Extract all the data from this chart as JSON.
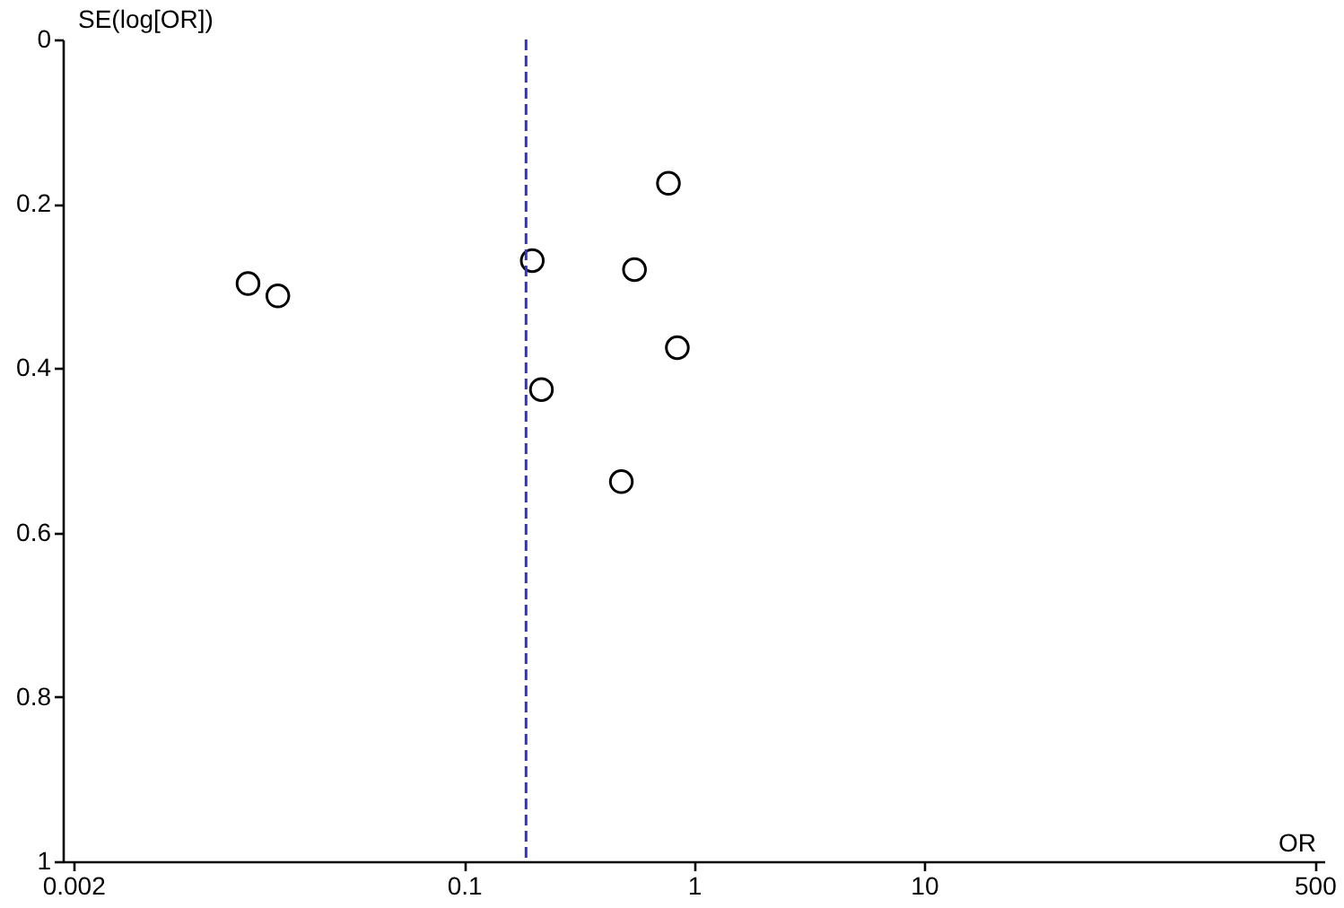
{
  "chart_data": {
    "type": "scatter",
    "xlabel": "OR",
    "ylabel": "SE(log[OR])",
    "x": [
      0.0115,
      0.0155,
      0.198,
      0.774,
      0.551,
      0.846,
      0.217,
      0.483
    ],
    "values": [
      0.297,
      0.312,
      0.269,
      0.175,
      0.28,
      0.375,
      0.426,
      0.538
    ],
    "color": "#000000",
    "marker": "circle",
    "log": "x",
    "xlim": [
      0.0018,
      550
    ],
    "xticks": [
      0.002,
      0.1,
      1,
      10,
      500
    ],
    "ylim": [
      1,
      0
    ],
    "yticks": [
      0,
      0.2,
      0.4,
      0.6,
      0.8,
      1
    ],
    "grid": false,
    "ref_lines": [
      {
        "axis": "x",
        "value": 0.186,
        "color": "#3333cc",
        "line_style": "dashed"
      }
    ]
  }
}
